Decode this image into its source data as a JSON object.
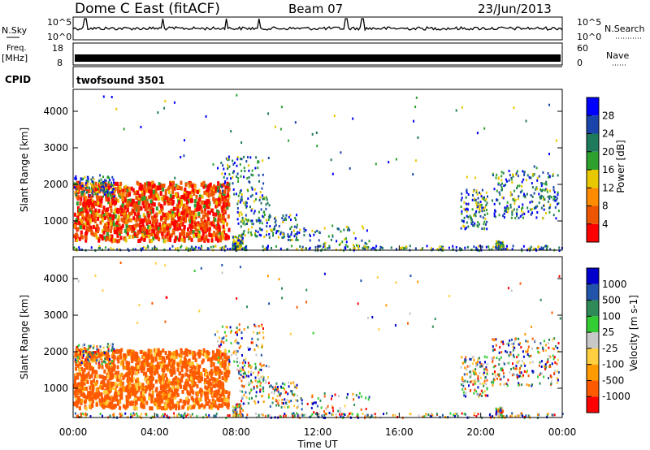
{
  "header": {
    "title": "Dome C East (fitACF)",
    "beam": "Beam 07",
    "date": "23/Jun/2013"
  },
  "top_panels": {
    "nsky_label": "N.Sky",
    "nsearch_label": "N.Search",
    "nsky_ticks": [
      "10^5",
      "10^0"
    ],
    "nsearch_ticks": [
      "10^5",
      "10^0"
    ],
    "freq_label": "Freq.",
    "freq_unit": "[MHz]",
    "freq_ticks": [
      "18",
      "8"
    ],
    "nave_label": "Nave",
    "nave_ticks": [
      "60",
      "0"
    ],
    "cpid_label": "CPID",
    "cpid_value": "twofsound 3501"
  },
  "chart_data": [
    {
      "type": "heatmap",
      "panel": "power",
      "ylabel": "Slant Range [km]",
      "yticks": [
        "4000",
        "3000",
        "2000",
        "1000"
      ],
      "ylim": [
        200,
        4600
      ],
      "xlim": [
        0,
        24
      ],
      "colorbar_label": "Power [dB]",
      "colorbar_ticks": [
        "28",
        "24",
        "20",
        "16",
        "12",
        "8",
        "4"
      ],
      "colors": [
        "#ff0000",
        "#ee5500",
        "#ff8c00",
        "#e8c800",
        "#2ea02e",
        "#1e7a5a",
        "#1a44aa",
        "#0000ff"
      ]
    },
    {
      "type": "heatmap",
      "panel": "velocity",
      "ylabel": "Slant Range [km]",
      "yticks": [
        "4000",
        "3000",
        "2000",
        "1000"
      ],
      "ylim": [
        200,
        4600
      ],
      "xlim": [
        0,
        24
      ],
      "xticks": [
        "00:00",
        "04:00",
        "08:00",
        "12:00",
        "16:00",
        "20:00",
        "00:00"
      ],
      "xlabel": "Time UT",
      "colorbar_label": "Velocity [m s-1]",
      "colorbar_ticks": [
        "1000",
        "500",
        "100",
        "25",
        "-25",
        "-100",
        "-500",
        "-1000"
      ],
      "colors": [
        "#ff0000",
        "#ff5a00",
        "#ff9a00",
        "#ffcf40",
        "#c8c8c8",
        "#33cc33",
        "#2e8b57",
        "#2255aa",
        "#0000cc"
      ]
    }
  ]
}
